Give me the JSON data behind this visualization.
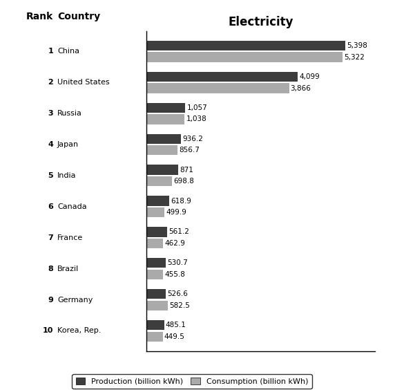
{
  "countries": [
    "China",
    "United States",
    "Russia",
    "Japan",
    "India",
    "Canada",
    "France",
    "Brazil",
    "Germany",
    "Korea, Rep."
  ],
  "ranks": [
    "1",
    "2",
    "3",
    "4",
    "5",
    "6",
    "7",
    "8",
    "9",
    "10"
  ],
  "production": [
    5398,
    4099,
    1057,
    936.2,
    871,
    618.9,
    561.2,
    530.7,
    526.6,
    485.1
  ],
  "consumption": [
    5322,
    3866,
    1038,
    856.7,
    698.8,
    499.9,
    462.9,
    455.8,
    582.5,
    449.5
  ],
  "production_color": "#3d3d3d",
  "consumption_color": "#aaaaaa",
  "title": "Electricity",
  "rank_label": "Rank",
  "country_label": "Country",
  "legend_production": "Production (billion kWh)",
  "legend_consumption": "Consumption (billion kWh)",
  "bar_height": 0.32,
  "bar_gap": 0.05,
  "xlim": [
    0,
    6200
  ],
  "background_color": "#ffffff",
  "label_fontsize": 8,
  "header_fontsize": 10,
  "value_fontsize": 7.5
}
